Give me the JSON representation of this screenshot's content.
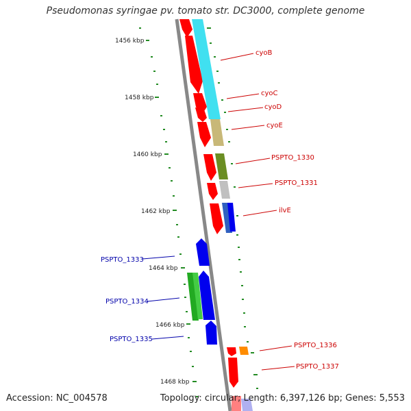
{
  "header": {
    "title": "Pseudomonas syringae pv. tomato str. DC3000, complete genome"
  },
  "footer": {
    "accession": "Accession: NC_004578",
    "summary": "Topology: circular; Length: 6,397,126 bp; Genes: 5,553"
  },
  "map": {
    "kbp_labels": [
      "1456 kbp",
      "1458 kbp",
      "1460 kbp",
      "1462 kbp",
      "1464 kbp",
      "1466 kbp",
      "1468 kbp"
    ],
    "right_labels": [
      "cyoB",
      "cyoC",
      "cyoD",
      "cyoE",
      "PSPTO_1330",
      "PSPTO_1331",
      "ilvE",
      "PSPTO_1336",
      "PSPTO_1337"
    ],
    "left_labels": [
      "PSPTO_1333",
      "PSPTO_1334",
      "PSPTO_1335"
    ],
    "colors": {
      "forward_red": "#ff0000",
      "reverse_blue": "#0000ee",
      "cyan": "#40e0f0",
      "tan": "#c8b878",
      "olive": "#6b8e23",
      "gray": "#c0c0c0",
      "green": "#22aa22",
      "orange": "#ff8c00",
      "right_label": "#cc0000",
      "left_label": "#0000aa",
      "tick": "#228b22"
    }
  }
}
